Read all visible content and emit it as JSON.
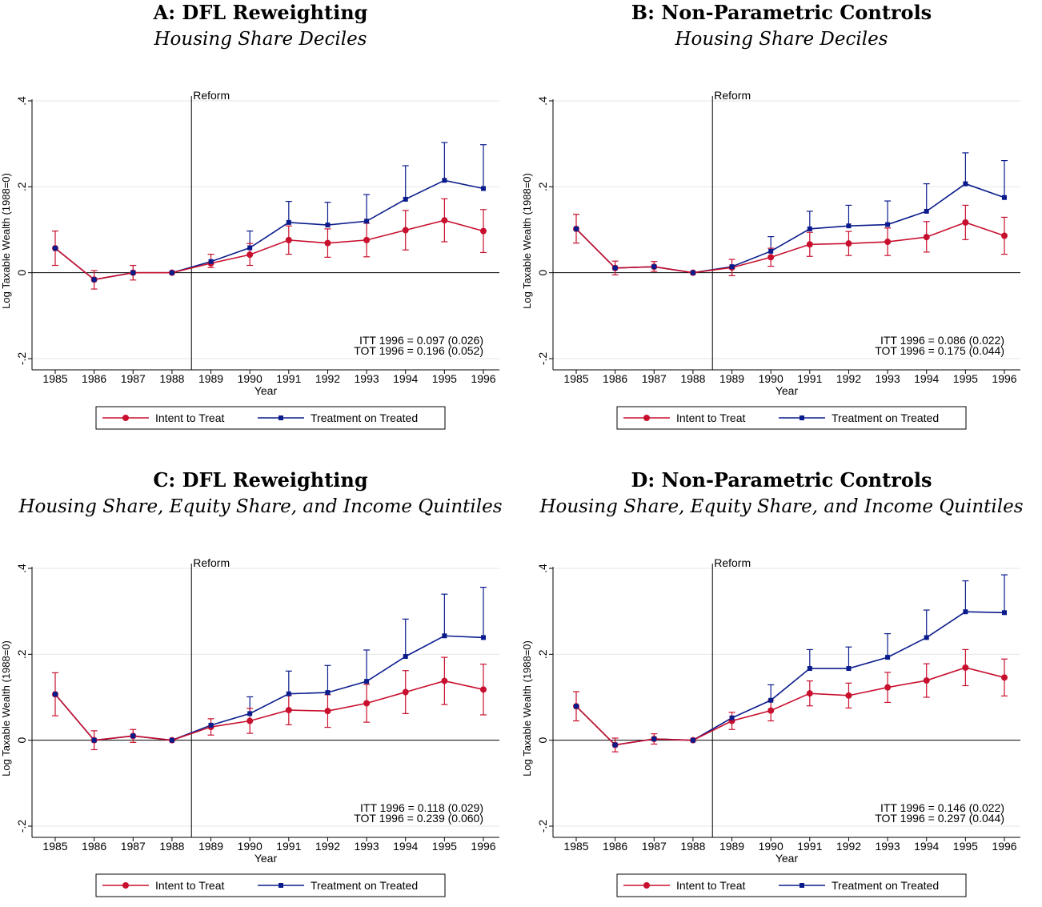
{
  "legend": {
    "itt": "Intent to Treat",
    "tot": "Treatment on Treated"
  },
  "colors": {
    "itt": "#c8102e",
    "tot": "#0a1c8c",
    "grid": "#e6e6e6",
    "axis": "#000000"
  },
  "chart_data": [
    {
      "type": "line",
      "title": "A: DFL Reweighting",
      "subtitle": "Housing Share Deciles",
      "xlabel": "Year",
      "ylabel": "Log Taxable Wealth (1988=0)",
      "x": [
        1985,
        1986,
        1987,
        1988,
        1989,
        1990,
        1991,
        1992,
        1993,
        1994,
        1995,
        1996
      ],
      "ylim": [
        -0.2,
        0.4
      ],
      "yticks": [
        -0.2,
        0,
        0.2,
        0.4
      ],
      "ytick_labels": [
        "-.2",
        "0",
        ".2",
        ".4"
      ],
      "reform_label": "Reform",
      "reform_x": 1988.5,
      "annotations": [
        "ITT 1996 = 0.097 (0.026)",
        "TOT 1996 = 0.196 (0.052)"
      ],
      "series": [
        {
          "name": "Intent to Treat",
          "values": [
            0.057,
            -0.016,
            0,
            0,
            0.022,
            0.042,
            0.076,
            0.069,
            0.076,
            0.099,
            0.122,
            0.097
          ],
          "lower": [
            0.017,
            -0.038,
            -0.017,
            0,
            0.012,
            0.017,
            0.043,
            0.036,
            0.037,
            0.053,
            0.072,
            0.047
          ],
          "upper": [
            0.097,
            0.005,
            0.017,
            0,
            0.043,
            0.068,
            0.109,
            0.102,
            0.115,
            0.145,
            0.172,
            0.147
          ]
        },
        {
          "name": "Treatment on Treated",
          "values": [
            0.057,
            -0.016,
            0,
            0,
            0.026,
            0.058,
            0.117,
            0.111,
            0.12,
            0.171,
            0.215,
            0.196
          ],
          "upper": [
            null,
            null,
            null,
            null,
            null,
            0.097,
            0.166,
            0.164,
            0.182,
            0.249,
            0.303,
            0.298
          ]
        }
      ]
    },
    {
      "type": "line",
      "title": "B: Non-Parametric Controls",
      "subtitle": "Housing Share Deciles",
      "xlabel": "Year",
      "ylabel": "Log Taxable Wealth (1988=0)",
      "x": [
        1985,
        1986,
        1987,
        1988,
        1989,
        1990,
        1991,
        1992,
        1993,
        1994,
        1995,
        1996
      ],
      "ylim": [
        -0.2,
        0.4
      ],
      "yticks": [
        -0.2,
        0,
        0.2,
        0.4
      ],
      "ytick_labels": [
        "-.2",
        "0",
        ".2",
        ".4"
      ],
      "reform_label": "Reform",
      "reform_x": 1988.5,
      "annotations": [
        "ITT 1996 = 0.086 (0.022)",
        "TOT 1996 = 0.175 (0.044)"
      ],
      "series": [
        {
          "name": "Intent to Treat",
          "values": [
            0.102,
            0.011,
            0.014,
            0,
            0.012,
            0.036,
            0.066,
            0.068,
            0.072,
            0.083,
            0.117,
            0.086
          ],
          "lower": [
            0.069,
            -0.005,
            0.003,
            0,
            -0.007,
            0.015,
            0.038,
            0.04,
            0.04,
            0.048,
            0.077,
            0.043
          ],
          "upper": [
            0.136,
            0.027,
            0.026,
            0,
            0.031,
            0.057,
            0.094,
            0.096,
            0.104,
            0.119,
            0.157,
            0.129
          ]
        },
        {
          "name": "Treatment on Treated",
          "values": [
            0.102,
            0.011,
            0.014,
            0,
            0.014,
            0.05,
            0.102,
            0.109,
            0.112,
            0.143,
            0.207,
            0.175
          ],
          "upper": [
            null,
            null,
            null,
            null,
            null,
            0.084,
            0.143,
            0.157,
            0.167,
            0.207,
            0.279,
            0.261
          ]
        }
      ]
    },
    {
      "type": "line",
      "title": "C: DFL Reweighting",
      "subtitle": "Housing Share, Equity Share, and Income Quintiles",
      "xlabel": "Year",
      "ylabel": "Log Taxable Wealth (1988=0)",
      "x": [
        1985,
        1986,
        1987,
        1988,
        1989,
        1990,
        1991,
        1992,
        1993,
        1994,
        1995,
        1996
      ],
      "ylim": [
        -0.2,
        0.4
      ],
      "yticks": [
        -0.2,
        0,
        0.2,
        0.4
      ],
      "ytick_labels": [
        "-.2",
        "0",
        ".2",
        ".4"
      ],
      "reform_label": "Reform",
      "reform_x": 1988.5,
      "annotations": [
        "ITT 1996 = 0.118 (0.029)",
        "TOT 1996 = 0.239 (0.060)"
      ],
      "series": [
        {
          "name": "Intent to Treat",
          "values": [
            0.107,
            0,
            0.01,
            0,
            0.031,
            0.045,
            0.07,
            0.068,
            0.086,
            0.112,
            0.138,
            0.118
          ],
          "lower": [
            0.057,
            -0.022,
            -0.005,
            0,
            0.012,
            0.016,
            0.036,
            0.03,
            0.042,
            0.062,
            0.083,
            0.059
          ],
          "upper": [
            0.157,
            0.022,
            0.025,
            0,
            0.05,
            0.074,
            0.104,
            0.106,
            0.13,
            0.162,
            0.193,
            0.177
          ]
        },
        {
          "name": "Treatment on Treated",
          "values": [
            0.107,
            0,
            0.01,
            0,
            0.035,
            0.062,
            0.108,
            0.111,
            0.137,
            0.195,
            0.243,
            0.239
          ],
          "upper": [
            null,
            null,
            null,
            null,
            null,
            0.101,
            0.161,
            0.174,
            0.21,
            0.282,
            0.34,
            0.356
          ]
        }
      ]
    },
    {
      "type": "line",
      "title": "D: Non-Parametric Controls",
      "subtitle": "Housing Share, Equity Share, and Income Quintiles",
      "xlabel": "Year",
      "ylabel": "Log Taxable Wealth (1988=0)",
      "x": [
        1985,
        1986,
        1987,
        1988,
        1989,
        1990,
        1991,
        1992,
        1993,
        1994,
        1995,
        1996
      ],
      "ylim": [
        -0.2,
        0.4
      ],
      "yticks": [
        -0.2,
        0,
        0.2,
        0.4
      ],
      "ytick_labels": [
        "-.2",
        "0",
        ".2",
        ".4"
      ],
      "reform_label": "Reform",
      "reform_x": 1988.5,
      "annotations": [
        "ITT 1996 = 0.146 (0.022)",
        "TOT 1996 = 0.297 (0.044)"
      ],
      "series": [
        {
          "name": "Intent to Treat",
          "values": [
            0.079,
            -0.011,
            0.003,
            0,
            0.045,
            0.069,
            0.109,
            0.104,
            0.123,
            0.139,
            0.169,
            0.146
          ],
          "lower": [
            0.045,
            -0.027,
            -0.009,
            0,
            0.025,
            0.045,
            0.08,
            0.075,
            0.088,
            0.1,
            0.127,
            0.103
          ],
          "upper": [
            0.113,
            0.005,
            0.015,
            0,
            0.065,
            0.093,
            0.138,
            0.133,
            0.158,
            0.178,
            0.211,
            0.189
          ]
        },
        {
          "name": "Treatment on Treated",
          "values": [
            0.079,
            -0.011,
            0.003,
            0,
            0.052,
            0.093,
            0.167,
            0.167,
            0.193,
            0.239,
            0.299,
            0.297
          ],
          "upper": [
            null,
            null,
            null,
            null,
            null,
            0.129,
            0.211,
            0.217,
            0.248,
            0.303,
            0.371,
            0.385
          ]
        }
      ]
    }
  ]
}
